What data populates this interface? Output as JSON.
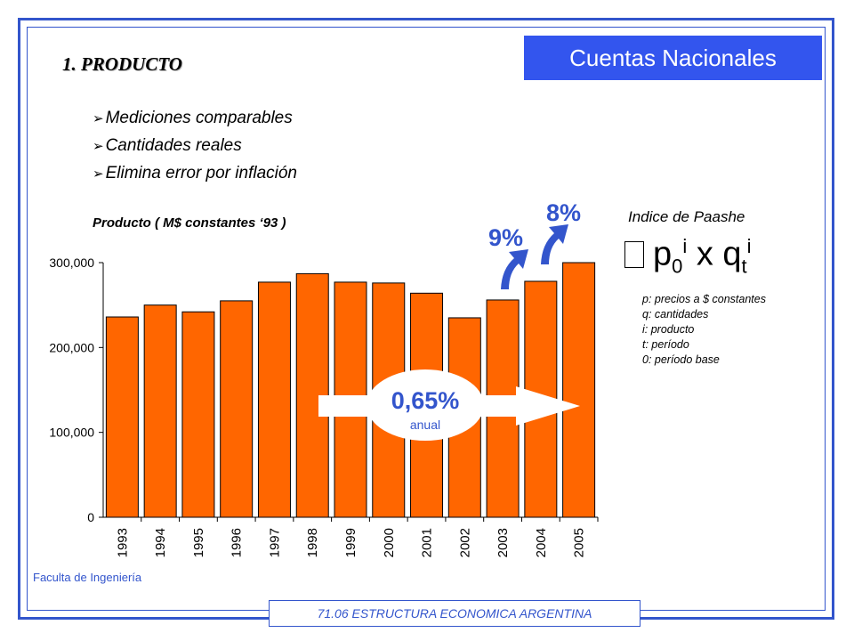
{
  "header": {
    "title": "Cuentas Nacionales"
  },
  "section": {
    "title": "1. PRODUCTO"
  },
  "bullets": [
    {
      "text": "Mediciones comparables"
    },
    {
      "text": "Cantidades reales"
    },
    {
      "text": "Elimina error por inflación"
    }
  ],
  "growth": {
    "rate_1": "9%",
    "rate_2": "8%",
    "annual_value": "0,65%",
    "annual_label": "anual"
  },
  "paasche": {
    "title": "Indice de Paashe",
    "formula": {
      "p": "p",
      "p_sub": "0",
      "p_sup": "i",
      "x": "x",
      "q": "q",
      "q_sub": "t",
      "q_sup": "i"
    },
    "legend": [
      "p: precios a $ constantes",
      "q: cantidades",
      "i: producto",
      "t: período",
      "0: período base"
    ]
  },
  "footer": {
    "left": "Faculta de Ingeniería",
    "course": "71.06 ESTRUCTURA ECONOMICA ARGENTINA"
  },
  "colors": {
    "accent": "#3355cc",
    "header_bg": "#3355ee",
    "bar": "#ff6600"
  },
  "chart_data": {
    "type": "bar",
    "title": "Producto ( M$ constantes ‘93 )",
    "categories": [
      "1993",
      "1994",
      "1995",
      "1996",
      "1997",
      "1998",
      "1999",
      "2000",
      "2001",
      "2002",
      "2003",
      "2004",
      "2005"
    ],
    "values": [
      236000,
      250000,
      242000,
      255000,
      277000,
      287000,
      277000,
      276000,
      264000,
      235000,
      256000,
      278000,
      300000
    ],
    "yticks": [
      0,
      100000,
      200000,
      300000
    ],
    "ytick_labels": [
      "0",
      "100,000",
      "200,000",
      "300,000"
    ],
    "ylim": [
      0,
      300000
    ],
    "bar_color": "#ff6600",
    "grid": false
  }
}
